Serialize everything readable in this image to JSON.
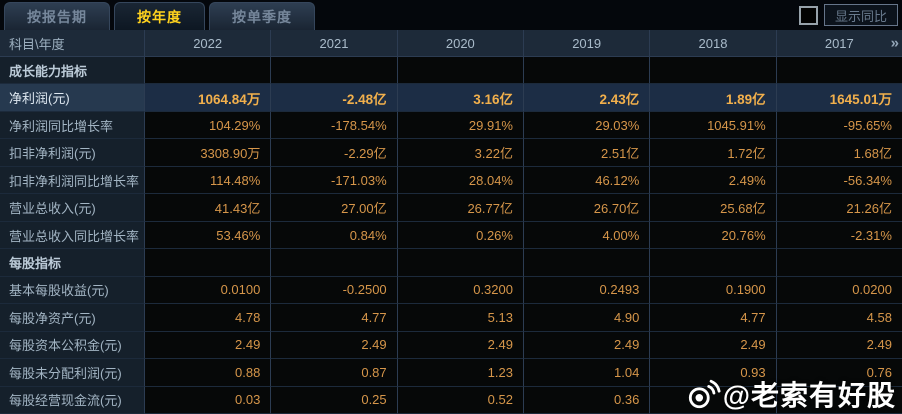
{
  "tabs": [
    {
      "label": "按报告期",
      "active": false
    },
    {
      "label": "按年度",
      "active": true
    },
    {
      "label": "按单季度",
      "active": false
    }
  ],
  "controls": {
    "show_yoy_label": "显示同比",
    "checkbox_checked": false
  },
  "table": {
    "corner_header": "科目\\年度",
    "year_headers": [
      "2022",
      "2021",
      "2020",
      "2019",
      "2018",
      "2017"
    ],
    "more_icon": "»",
    "rows": [
      {
        "type": "section",
        "label": "成长能力指标",
        "values": [
          "",
          "",
          "",
          "",
          "",
          ""
        ]
      },
      {
        "type": "highlight",
        "label": "净利润(元)",
        "values": [
          "1064.84万",
          "-2.48亿",
          "3.16亿",
          "2.43亿",
          "1.89亿",
          "1645.01万"
        ]
      },
      {
        "type": "data",
        "label": "净利润同比增长率",
        "values": [
          "104.29%",
          "-178.54%",
          "29.91%",
          "29.03%",
          "1045.91%",
          "-95.65%"
        ]
      },
      {
        "type": "data",
        "label": "扣非净利润(元)",
        "values": [
          "3308.90万",
          "-2.29亿",
          "3.22亿",
          "2.51亿",
          "1.72亿",
          "1.68亿"
        ]
      },
      {
        "type": "data",
        "label": "扣非净利润同比增长率",
        "values": [
          "114.48%",
          "-171.03%",
          "28.04%",
          "46.12%",
          "2.49%",
          "-56.34%"
        ]
      },
      {
        "type": "data",
        "label": "营业总收入(元)",
        "values": [
          "41.43亿",
          "27.00亿",
          "26.77亿",
          "26.70亿",
          "25.68亿",
          "21.26亿"
        ]
      },
      {
        "type": "data",
        "label": "营业总收入同比增长率",
        "values": [
          "53.46%",
          "0.84%",
          "0.26%",
          "4.00%",
          "20.76%",
          "-2.31%"
        ]
      },
      {
        "type": "section",
        "label": "每股指标",
        "values": [
          "",
          "",
          "",
          "",
          "",
          ""
        ]
      },
      {
        "type": "data",
        "label": "基本每股收益(元)",
        "values": [
          "0.0100",
          "-0.2500",
          "0.3200",
          "0.2493",
          "0.1900",
          "0.0200"
        ]
      },
      {
        "type": "data",
        "label": "每股净资产(元)",
        "values": [
          "4.78",
          "4.77",
          "5.13",
          "4.90",
          "4.77",
          "4.58"
        ]
      },
      {
        "type": "data",
        "label": "每股资本公积金(元)",
        "values": [
          "2.49",
          "2.49",
          "2.49",
          "2.49",
          "2.49",
          "2.49"
        ]
      },
      {
        "type": "data",
        "label": "每股未分配利润(元)",
        "values": [
          "0.88",
          "0.87",
          "1.23",
          "1.04",
          "0.93",
          "0.76"
        ]
      },
      {
        "type": "data",
        "label": "每股经营现金流(元)",
        "values": [
          "0.03",
          "0.25",
          "0.52",
          "0.36",
          "",
          ""
        ]
      }
    ]
  },
  "watermark": {
    "text": "@老索有好股"
  },
  "colors": {
    "accent_gold": "#ffd21e",
    "value_orange": "#d6964a",
    "highlight_value_gold": "#f2b04c",
    "highlight_row_bg": "#1c2d45",
    "label_col_bg": "#15202b",
    "header_row_bg": "#1d2a39",
    "grid_line": "#2c3c52",
    "watermark_white": "#ffffff"
  }
}
